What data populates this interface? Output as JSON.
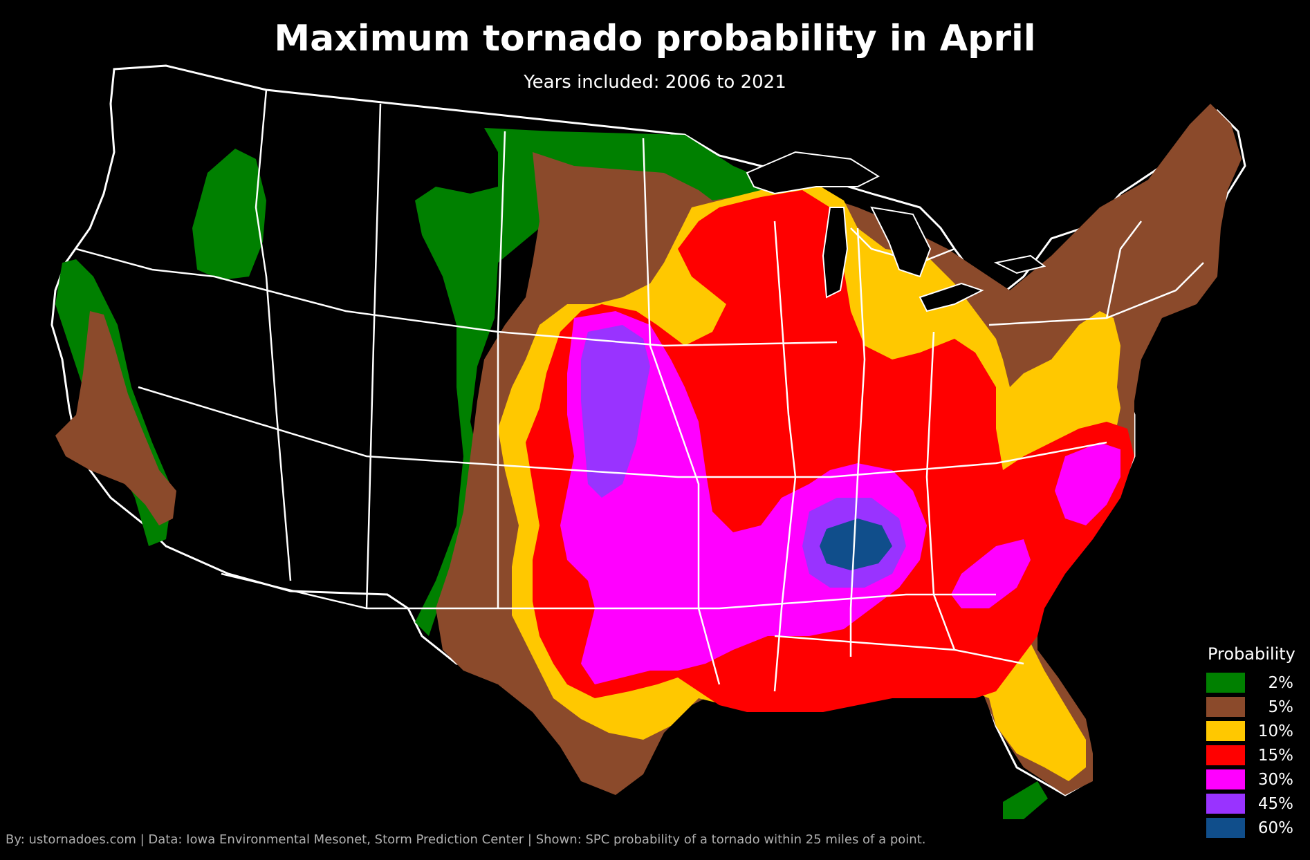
{
  "title": "Maximum tornado probability in April",
  "subtitle": "Years included: 2006 to 2021",
  "credit": "By: ustornadoes.com | Data: Iowa Environmental Mesonet, Storm Prediction Center | Shown: SPC probability of a tornado within 25 miles of a point.",
  "legend": {
    "title": "Probability",
    "items": [
      {
        "label": "2%",
        "color": "#008000"
      },
      {
        "label": "5%",
        "color": "#8B4A2B"
      },
      {
        "label": "10%",
        "color": "#FFC800"
      },
      {
        "label": "15%",
        "color": "#FF0000"
      },
      {
        "label": "30%",
        "color": "#FF00FF"
      },
      {
        "label": "45%",
        "color": "#9933FF"
      },
      {
        "label": "60%",
        "color": "#104E8B"
      }
    ]
  },
  "colors": {
    "background": "#000000",
    "state_borders": "#ffffff",
    "county_lines": "#5a5a5a"
  }
}
